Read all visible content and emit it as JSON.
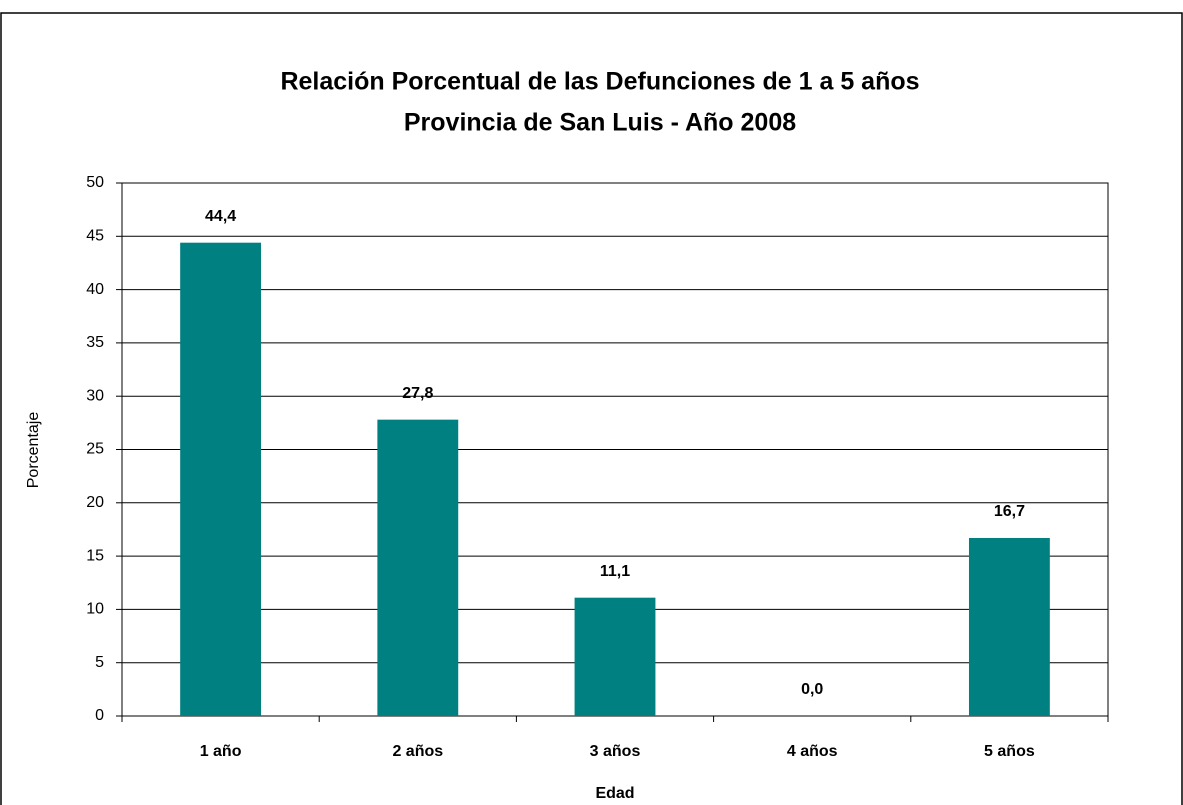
{
  "chart_data": {
    "type": "bar",
    "title": "Relación Porcentual de las Defunciones de 1 a 5 años",
    "subtitle": "Provincia de San Luis - Año 2008",
    "x_label": "Edad",
    "y_label": "Porcentaje",
    "categories": [
      "1 año",
      "2 años",
      "3 años",
      "4 años",
      "5 años"
    ],
    "values": [
      44.4,
      27.8,
      11.1,
      0.0,
      16.7
    ],
    "value_labels": [
      "44,4",
      "27,8",
      "11,1",
      "0,0",
      "16,7"
    ],
    "color": "#008080",
    "ylim": [
      0,
      50
    ],
    "yticks": [
      0,
      5,
      10,
      15,
      20,
      25,
      30,
      35,
      40,
      45,
      50
    ],
    "grid": true
  }
}
